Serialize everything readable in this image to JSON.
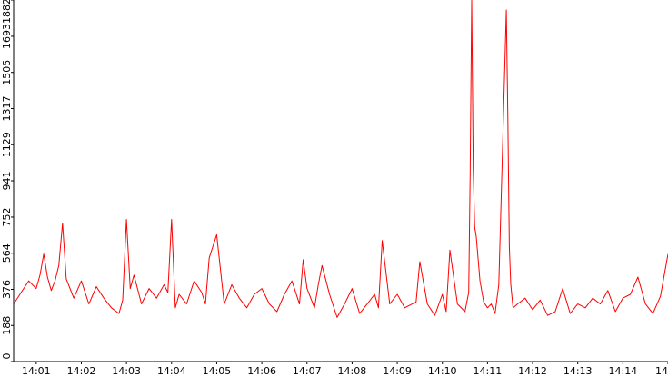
{
  "chart_data": {
    "type": "line",
    "title": "",
    "xlabel": "",
    "ylabel": "",
    "ylim": [
      0,
      1882
    ],
    "xlim": [
      "14:00:30",
      "14:15:00"
    ],
    "grid": false,
    "legend": "none",
    "y_ticks": [
      "0",
      "188",
      "376",
      "564",
      "752",
      "941",
      "1129",
      "1317",
      "1505",
      "1693",
      "1882"
    ],
    "x_ticks": [
      "14:01",
      "14:02",
      "14:03",
      "14:04",
      "14:05",
      "14:06",
      "14:07",
      "14:08",
      "14:09",
      "14:10",
      "14:11",
      "14:12",
      "14:13",
      "14:14",
      "14"
    ],
    "series": [
      {
        "color": "#ff0000",
        "x": [
          "14:00:30",
          "14:00:40",
          "14:00:50",
          "14:01:00",
          "14:01:05",
          "14:01:10",
          "14:01:15",
          "14:01:20",
          "14:01:25",
          "14:01:30",
          "14:01:35",
          "14:01:40",
          "14:01:50",
          "14:02:00",
          "14:02:10",
          "14:02:20",
          "14:02:30",
          "14:02:40",
          "14:02:50",
          "14:02:55",
          "14:03:00",
          "14:03:05",
          "14:03:10",
          "14:03:20",
          "14:03:30",
          "14:03:40",
          "14:03:50",
          "14:03:55",
          "14:04:00",
          "14:04:05",
          "14:04:10",
          "14:04:20",
          "14:04:30",
          "14:04:40",
          "14:04:45",
          "14:04:50",
          "14:05:00",
          "14:05:10",
          "14:05:20",
          "14:05:30",
          "14:05:40",
          "14:05:50",
          "14:06:00",
          "14:06:10",
          "14:06:20",
          "14:06:30",
          "14:06:40",
          "14:06:50",
          "14:06:55",
          "14:07:00",
          "14:07:10",
          "14:07:15",
          "14:07:20",
          "14:07:30",
          "14:07:40",
          "14:07:50",
          "14:08:00",
          "14:08:10",
          "14:08:20",
          "14:08:30",
          "14:08:35",
          "14:08:40",
          "14:08:50",
          "14:09:00",
          "14:09:10",
          "14:09:20",
          "14:09:25",
          "14:09:30",
          "14:09:40",
          "14:09:50",
          "14:10:00",
          "14:10:05",
          "14:10:10",
          "14:10:20",
          "14:10:30",
          "14:10:35",
          "14:10:37",
          "14:10:39",
          "14:10:41",
          "14:10:43",
          "14:10:45",
          "14:10:50",
          "14:10:55",
          "14:11:00",
          "14:11:05",
          "14:11:10",
          "14:11:15",
          "14:11:20",
          "14:11:25",
          "14:11:27",
          "14:11:29",
          "14:11:31",
          "14:11:34",
          "14:11:40",
          "14:11:50",
          "14:12:00",
          "14:12:10",
          "14:12:20",
          "14:12:30",
          "14:12:40",
          "14:12:50",
          "14:13:00",
          "14:13:10",
          "14:13:20",
          "14:13:30",
          "14:13:40",
          "14:13:50",
          "14:14:00",
          "14:14:10",
          "14:14:20",
          "14:14:30",
          "14:14:40",
          "14:14:50",
          "14:15:00"
        ],
        "y": [
          300,
          360,
          420,
          380,
          450,
          560,
          440,
          370,
          420,
          500,
          720,
          430,
          330,
          420,
          300,
          390,
          330,
          280,
          250,
          320,
          740,
          380,
          450,
          300,
          380,
          330,
          400,
          360,
          740,
          280,
          350,
          300,
          420,
          360,
          300,
          540,
          660,
          300,
          400,
          330,
          280,
          350,
          380,
          300,
          260,
          350,
          420,
          300,
          530,
          380,
          280,
          400,
          500,
          350,
          230,
          300,
          380,
          250,
          300,
          350,
          280,
          630,
          300,
          350,
          280,
          300,
          310,
          520,
          300,
          240,
          350,
          260,
          580,
          300,
          260,
          360,
          980,
          1882,
          1000,
          700,
          650,
          420,
          310,
          280,
          300,
          250,
          400,
          1100,
          1830,
          1300,
          600,
          400,
          280,
          300,
          330,
          270,
          320,
          240,
          260,
          380,
          250,
          300,
          280,
          330,
          300,
          370,
          260,
          330,
          350,
          440,
          300,
          250,
          340,
          560
        ]
      }
    ]
  }
}
